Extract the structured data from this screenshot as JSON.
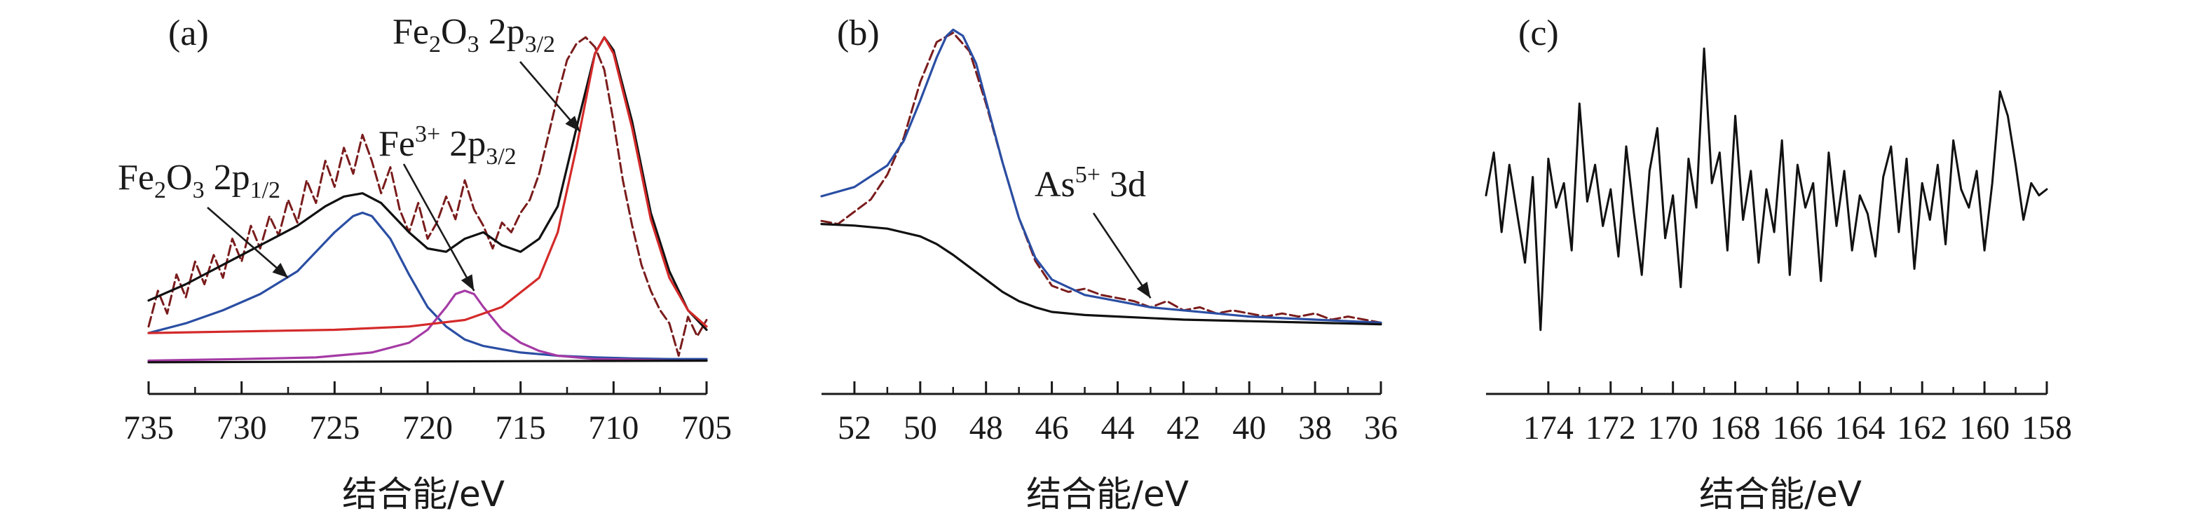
{
  "chart_data": [
    {
      "type": "line",
      "panel_label": "(a)",
      "xlabel": "结合能/eV",
      "xlim": [
        735,
        705
      ],
      "ylim": [
        -0.05,
        1.05
      ],
      "xticks": [
        735,
        730,
        725,
        720,
        715,
        710,
        705
      ],
      "annotations": [
        {
          "text": "Fe₂O₃ 2p3/2",
          "base": "Fe",
          "sub1": "2",
          "mid": "O",
          "sub2": "3",
          "tail": " 2p",
          "sub3": "3/2",
          "target": [
            711.8,
            0.71
          ]
        },
        {
          "text": "Fe³⁺ 2p3/2",
          "base": "Fe",
          "sup": "3+",
          "tail": " 2p",
          "sub3": "3/2",
          "target": [
            717.5,
            0.22
          ]
        },
        {
          "text": "Fe₂O₃ 2p1/2",
          "base": "Fe",
          "sub1": "2",
          "mid": "O",
          "sub2": "3",
          "tail": " 2p",
          "sub3": "1/2",
          "target": [
            727.5,
            0.26
          ]
        }
      ],
      "series": [
        {
          "role": "raw",
          "color": "#7a1c1c",
          "x": [
            735.0,
            734.5,
            734.0,
            733.5,
            733.0,
            732.5,
            732.0,
            731.5,
            731.0,
            730.5,
            730.0,
            729.5,
            729.0,
            728.5,
            728.0,
            727.5,
            727.0,
            726.5,
            726.0,
            725.5,
            725.0,
            724.5,
            724.0,
            723.5,
            723.0,
            722.5,
            722.0,
            721.5,
            721.0,
            720.5,
            720.0,
            719.5,
            719.0,
            718.5,
            718.0,
            717.5,
            717.0,
            716.5,
            716.0,
            715.5,
            715.0,
            714.5,
            714.0,
            713.5,
            713.0,
            712.5,
            712.0,
            711.5,
            711.0,
            710.5,
            710.0,
            709.5,
            709.0,
            708.5,
            708.0,
            707.5,
            707.0,
            706.5,
            706.0,
            705.5,
            705.0
          ],
          "y": [
            0.11,
            0.22,
            0.15,
            0.27,
            0.2,
            0.31,
            0.24,
            0.33,
            0.26,
            0.38,
            0.31,
            0.42,
            0.35,
            0.45,
            0.39,
            0.5,
            0.43,
            0.56,
            0.49,
            0.62,
            0.54,
            0.66,
            0.58,
            0.7,
            0.62,
            0.52,
            0.6,
            0.47,
            0.4,
            0.49,
            0.38,
            0.43,
            0.51,
            0.44,
            0.56,
            0.47,
            0.42,
            0.35,
            0.43,
            0.4,
            0.46,
            0.5,
            0.58,
            0.7,
            0.82,
            0.93,
            0.98,
            1.0,
            0.97,
            0.9,
            0.74,
            0.56,
            0.42,
            0.3,
            0.22,
            0.16,
            0.12,
            0.02,
            0.14,
            0.08,
            0.13
          ]
        },
        {
          "role": "envelope",
          "color": "#111111",
          "x": [
            735,
            733,
            731,
            729,
            727,
            725.5,
            724.5,
            723.5,
            722.5,
            721,
            720,
            719,
            718,
            717,
            716,
            715,
            714,
            713,
            712,
            711,
            710.5,
            710,
            709,
            708,
            707,
            706,
            705
          ],
          "y": [
            0.19,
            0.24,
            0.3,
            0.36,
            0.42,
            0.48,
            0.51,
            0.52,
            0.49,
            0.4,
            0.35,
            0.34,
            0.38,
            0.4,
            0.36,
            0.34,
            0.38,
            0.48,
            0.72,
            0.95,
            1.0,
            0.96,
            0.74,
            0.46,
            0.28,
            0.16,
            0.1
          ]
        },
        {
          "role": "component",
          "name": "Fe₂O₃ 2p1/2",
          "color": "#2a4ea3",
          "x": [
            735,
            733,
            731,
            729,
            727,
            726,
            725,
            724,
            723.5,
            723,
            722,
            721,
            720,
            719,
            718,
            717,
            716,
            715,
            713,
            711,
            709,
            707,
            705
          ],
          "y": [
            0.09,
            0.12,
            0.16,
            0.21,
            0.28,
            0.34,
            0.4,
            0.45,
            0.46,
            0.45,
            0.38,
            0.27,
            0.17,
            0.11,
            0.07,
            0.05,
            0.04,
            0.03,
            0.02,
            0.015,
            0.012,
            0.01,
            0.01
          ]
        },
        {
          "role": "component",
          "name": "Fe³⁺ 2p3/2",
          "color": "#a53aa5",
          "x": [
            735,
            730,
            726,
            723,
            721,
            720,
            719,
            718.5,
            718,
            717.5,
            717,
            716,
            715,
            714,
            713,
            711,
            709,
            707,
            705
          ],
          "y": [
            0.005,
            0.01,
            0.015,
            0.03,
            0.06,
            0.1,
            0.17,
            0.21,
            0.22,
            0.21,
            0.17,
            0.1,
            0.06,
            0.035,
            0.02,
            0.01,
            0.008,
            0.005,
            0.005
          ]
        },
        {
          "role": "component",
          "name": "Fe₂O₃ 2p3/2",
          "color": "#d42a2a",
          "x": [
            735,
            730,
            725,
            721,
            718,
            716,
            714,
            713,
            712,
            711,
            710.5,
            710,
            709,
            708,
            707,
            706,
            705
          ],
          "y": [
            0.09,
            0.095,
            0.1,
            0.11,
            0.13,
            0.17,
            0.26,
            0.4,
            0.66,
            0.95,
            1.0,
            0.95,
            0.72,
            0.44,
            0.26,
            0.16,
            0.11
          ]
        },
        {
          "role": "baseline",
          "color": "#111111",
          "x": [
            735,
            705
          ],
          "y": [
            0.0,
            0.005
          ]
        }
      ]
    },
    {
      "type": "line",
      "panel_label": "(b)",
      "xlabel": "结合能/eV",
      "xlim": [
        53,
        36
      ],
      "ylim": [
        -0.05,
        1.05
      ],
      "xticks": [
        52,
        50,
        48,
        46,
        44,
        42,
        40,
        38,
        36
      ],
      "annotations": [
        {
          "text": "As⁵⁺ 3d",
          "base": "As",
          "sup": "5+",
          "tail": " 3d",
          "target": [
            43.0,
            0.12
          ]
        }
      ],
      "series": [
        {
          "role": "raw",
          "color": "#7a1c1c",
          "x": [
            53,
            52.5,
            52,
            51.5,
            51,
            50.5,
            50,
            49.5,
            49,
            48.5,
            48,
            47.5,
            47,
            46.5,
            46,
            45.5,
            45,
            44.5,
            44,
            43.5,
            43,
            42.5,
            42,
            41.5,
            41,
            40.5,
            40,
            39.5,
            39,
            38.5,
            38,
            37.5,
            37,
            36.5,
            36
          ],
          "y": [
            0.37,
            0.36,
            0.4,
            0.44,
            0.52,
            0.64,
            0.82,
            0.95,
            0.98,
            0.92,
            0.75,
            0.56,
            0.38,
            0.24,
            0.16,
            0.14,
            0.15,
            0.13,
            0.12,
            0.11,
            0.09,
            0.11,
            0.08,
            0.09,
            0.07,
            0.08,
            0.07,
            0.06,
            0.07,
            0.06,
            0.07,
            0.05,
            0.06,
            0.05,
            0.04
          ]
        },
        {
          "role": "fit",
          "color": "#2a4ea3",
          "x": [
            53,
            52,
            51,
            50.5,
            50,
            49.5,
            49.2,
            49,
            48.7,
            48.3,
            48,
            47.5,
            47,
            46.5,
            46,
            45,
            44,
            43,
            42,
            41,
            40,
            38,
            36
          ],
          "y": [
            0.45,
            0.48,
            0.55,
            0.63,
            0.76,
            0.9,
            0.97,
            0.99,
            0.97,
            0.88,
            0.76,
            0.56,
            0.38,
            0.25,
            0.18,
            0.13,
            0.11,
            0.09,
            0.08,
            0.07,
            0.06,
            0.05,
            0.04
          ]
        },
        {
          "role": "baseline",
          "color": "#111111",
          "x": [
            53,
            52,
            51,
            50,
            49.5,
            49,
            48.5,
            48,
            47.5,
            47,
            46.5,
            46,
            45,
            44,
            43,
            42,
            40,
            38,
            36
          ],
          "y": [
            0.36,
            0.355,
            0.345,
            0.32,
            0.295,
            0.26,
            0.22,
            0.18,
            0.14,
            0.11,
            0.09,
            0.075,
            0.065,
            0.06,
            0.055,
            0.05,
            0.045,
            0.04,
            0.035
          ]
        }
      ]
    },
    {
      "type": "line",
      "panel_label": "(c)",
      "xlabel": "结合能/eV",
      "xlim": [
        176,
        158
      ],
      "ylim": [
        -0.05,
        1.05
      ],
      "xticks": [
        174,
        172,
        170,
        168,
        166,
        164,
        162,
        160,
        158
      ],
      "series": [
        {
          "role": "raw",
          "color": "#111111",
          "x": [
            176.0,
            175.75,
            175.5,
            175.25,
            175.0,
            174.75,
            174.5,
            174.25,
            174.0,
            173.75,
            173.5,
            173.25,
            173.0,
            172.75,
            172.5,
            172.25,
            172.0,
            171.75,
            171.5,
            171.25,
            171.0,
            170.75,
            170.5,
            170.25,
            170.0,
            169.75,
            169.5,
            169.25,
            169.0,
            168.75,
            168.5,
            168.25,
            168.0,
            167.75,
            167.5,
            167.25,
            167.0,
            166.75,
            166.5,
            166.25,
            166.0,
            165.75,
            165.5,
            165.25,
            165.0,
            164.75,
            164.5,
            164.25,
            164.0,
            163.75,
            163.5,
            163.25,
            163.0,
            162.75,
            162.5,
            162.25,
            162.0,
            161.75,
            161.5,
            161.25,
            161.0,
            160.75,
            160.5,
            160.25,
            160.0,
            159.75,
            159.5,
            159.25,
            159.0,
            158.75,
            158.5,
            158.25,
            158.0
          ],
          "y": [
            0.48,
            0.62,
            0.36,
            0.58,
            0.42,
            0.26,
            0.54,
            0.04,
            0.6,
            0.44,
            0.52,
            0.3,
            0.78,
            0.46,
            0.58,
            0.38,
            0.5,
            0.28,
            0.64,
            0.42,
            0.22,
            0.56,
            0.7,
            0.34,
            0.48,
            0.18,
            0.6,
            0.44,
            0.96,
            0.52,
            0.62,
            0.3,
            0.74,
            0.4,
            0.56,
            0.26,
            0.5,
            0.36,
            0.66,
            0.22,
            0.58,
            0.44,
            0.52,
            0.2,
            0.62,
            0.38,
            0.56,
            0.3,
            0.48,
            0.42,
            0.28,
            0.54,
            0.64,
            0.36,
            0.6,
            0.24,
            0.52,
            0.4,
            0.58,
            0.32,
            0.66,
            0.5,
            0.44,
            0.56,
            0.3,
            0.52,
            0.82,
            0.74,
            0.58,
            0.4,
            0.52,
            0.48,
            0.5
          ]
        }
      ]
    }
  ]
}
